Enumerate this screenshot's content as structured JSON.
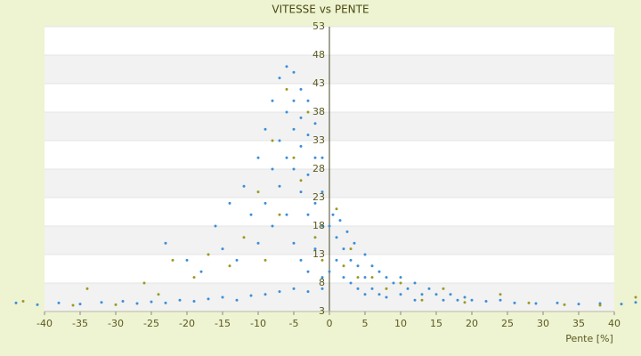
{
  "chart_data": {
    "type": "scatter",
    "title": "VITESSE vs PENTE",
    "x_label": "Pente [%]",
    "xlim": [
      -40,
      40
    ],
    "xticks": [
      -40,
      -35,
      -30,
      -25,
      -20,
      -15,
      -10,
      -5,
      0,
      5,
      10,
      15,
      20,
      25,
      30,
      35,
      40
    ],
    "ylim": [
      3,
      53
    ],
    "yticks": [
      3,
      8,
      13,
      18,
      23,
      28,
      33,
      38,
      43,
      48,
      53
    ],
    "grid": true,
    "series": [
      {
        "color": "#3b8fd9",
        "x": [
          -44,
          -41,
          -38,
          -35,
          -32,
          -29,
          -27,
          -25,
          -23,
          -21,
          -19,
          -17,
          -15,
          -13,
          -11,
          -9,
          -7,
          -5,
          -3,
          -1,
          -23,
          -20,
          -18,
          -16,
          -15,
          -14,
          -13,
          -12,
          -11,
          -10,
          -10,
          -9,
          -9,
          -8,
          -8,
          -8,
          -7,
          -7,
          -7,
          -6,
          -6,
          -6,
          -6,
          -5,
          -5,
          -5,
          -5,
          -5,
          -4,
          -4,
          -4,
          -4,
          -4,
          -3,
          -3,
          -3,
          -3,
          -3,
          -2,
          -2,
          -2,
          -2,
          -1,
          -1,
          -1,
          -1,
          0,
          0,
          0.5,
          1,
          1,
          1.5,
          2,
          2,
          2.5,
          3,
          3,
          3.5,
          4,
          4,
          5,
          5,
          5,
          6,
          6,
          7,
          7,
          8,
          8,
          9,
          10,
          10,
          11,
          12,
          12,
          13,
          14,
          15,
          16,
          17,
          18,
          19,
          20,
          22,
          24,
          26,
          29,
          32,
          35,
          38,
          41,
          43
        ],
        "values": [
          4.5,
          4.2,
          4.5,
          4.3,
          4.6,
          4.8,
          4.4,
          4.7,
          4.5,
          5.0,
          4.8,
          5.2,
          5.5,
          5.0,
          5.8,
          6,
          6.5,
          7,
          6.5,
          7,
          15,
          12,
          10,
          18,
          14,
          22,
          12,
          25,
          20,
          30,
          15,
          35,
          22,
          40,
          28,
          18,
          44,
          33,
          25,
          46,
          38,
          30,
          20,
          45,
          40,
          35,
          28,
          15,
          42,
          37,
          32,
          24,
          12,
          40,
          34,
          27,
          20,
          10,
          36,
          30,
          22,
          14,
          30,
          24,
          18,
          9,
          10,
          18,
          20,
          16,
          12,
          19,
          14,
          9,
          17,
          12,
          8,
          15,
          11,
          7,
          13,
          9,
          6,
          11,
          7,
          10,
          6,
          9,
          5.5,
          8,
          9,
          6,
          7,
          8,
          5,
          6,
          7,
          6,
          5,
          6,
          5,
          5.5,
          5,
          4.8,
          5,
          4.5,
          4.4,
          4.5,
          4.3,
          4.4,
          4.3,
          4.6
        ]
      },
      {
        "color": "#9a9a22",
        "x": [
          -43,
          -36,
          -34,
          -30,
          -26,
          -24,
          -22,
          -19,
          -17,
          -14,
          -12,
          -10,
          -9,
          -8,
          -7,
          -6,
          -5,
          -4,
          -3,
          -2,
          -1,
          1,
          2,
          3,
          4,
          6,
          8,
          10,
          13,
          16,
          19,
          24,
          28,
          33,
          38,
          43
        ],
        "values": [
          4.8,
          4.1,
          7,
          4.2,
          8,
          6,
          12,
          9,
          13,
          11,
          16,
          24,
          12,
          33,
          20,
          42,
          30,
          26,
          38,
          16,
          12,
          21,
          11,
          14,
          9,
          9,
          7,
          8,
          5,
          7,
          4.6,
          6,
          4.5,
          4.2,
          4.1,
          5.5
        ]
      }
    ]
  }
}
